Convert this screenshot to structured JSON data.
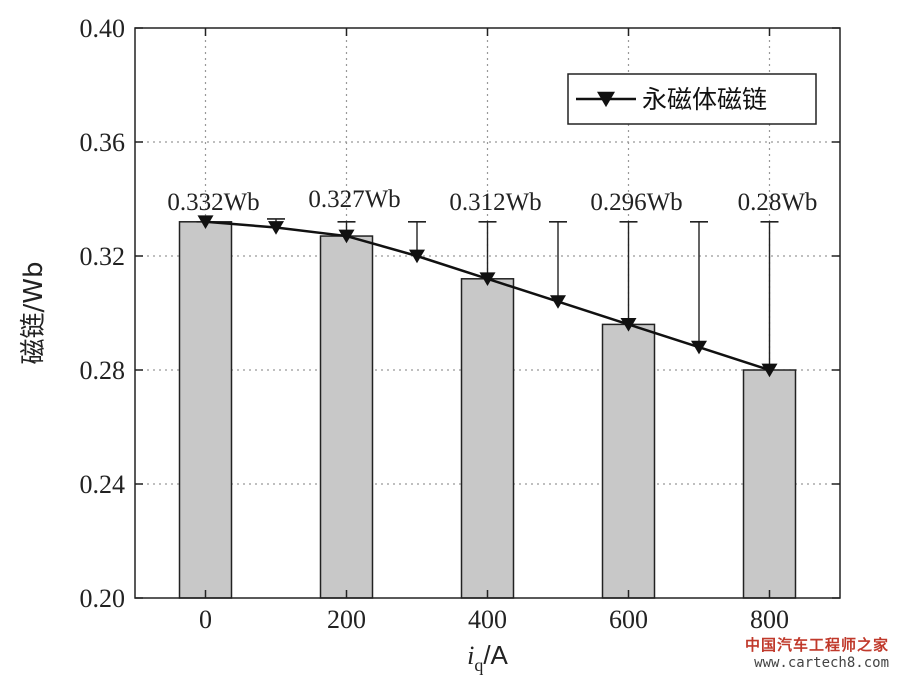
{
  "chart_data": {
    "type": "bar",
    "categories": [
      "0",
      "200",
      "400",
      "600",
      "800"
    ],
    "values": [
      0.332,
      0.327,
      0.312,
      0.296,
      0.28
    ],
    "bar_labels": [
      "0.332Wb",
      "0.327Wb",
      "0.312Wb",
      "0.296Wb",
      "0.28Wb"
    ],
    "bar_color": "#c8c8c8",
    "xlabel": "iq/A",
    "xlabel_main": "i",
    "xlabel_sub": "q",
    "xlabel_unit": "/A",
    "ylabel": "磁链/Wb",
    "ylim": [
      0.2,
      0.4
    ],
    "xlim": [
      -100,
      900
    ],
    "yticks": [
      "0.20",
      "0.24",
      "0.28",
      "0.32",
      "0.36",
      "0.40"
    ],
    "grid": true,
    "legend_position": "top-right",
    "series": [
      {
        "name": "永磁体磁链",
        "type": "line",
        "marker": "down-triangle",
        "x": [
          0,
          100,
          200,
          300,
          400,
          500,
          600,
          700,
          800
        ],
        "y": [
          0.332,
          0.33,
          0.327,
          0.32,
          0.312,
          0.304,
          0.296,
          0.288,
          0.28
        ]
      }
    ],
    "error_bars": {
      "x": [
        0,
        100,
        200,
        300,
        400,
        500,
        600,
        700,
        800
      ],
      "upper": [
        0.332,
        0.333,
        0.332,
        0.332,
        0.332,
        0.332,
        0.332,
        0.332,
        0.332
      ]
    }
  },
  "watermark": {
    "line1": "中国汽车工程师之家",
    "line2": "www.cartech8.com"
  }
}
